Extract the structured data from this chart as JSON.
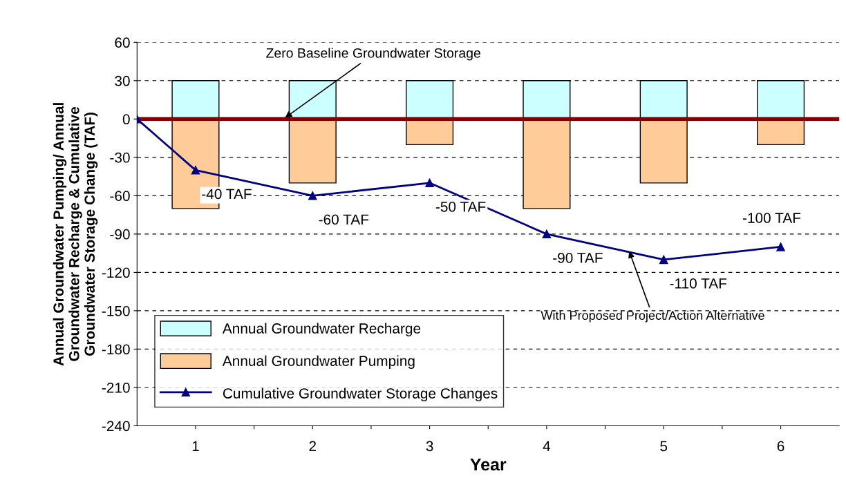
{
  "chart_data": {
    "type": "bar",
    "xlabel": "Year",
    "ylabel": "Annual Groundwater Pumping/ Annual\nGroundwater Recharge & Cumulative\nGroundwater Storage Change (TAF)",
    "x": [
      1,
      2,
      3,
      4,
      5,
      6
    ],
    "stacked": true,
    "series": [
      {
        "name": "Annual Groundwater Recharge",
        "color": "#ccffff",
        "values": [
          30,
          30,
          30,
          30,
          30,
          30
        ]
      },
      {
        "name": "Annual Groundwater Pumping",
        "color": "#ffcc99",
        "values": [
          -70,
          -50,
          -20,
          -70,
          -50,
          -20
        ]
      },
      {
        "name": "Cumulative Groundwater Storage Changes",
        "type": "line",
        "color": "#000080",
        "x": [
          0.5,
          1,
          2,
          3,
          4,
          5,
          6
        ],
        "values": [
          0,
          -40,
          -60,
          -50,
          -90,
          -110,
          -100
        ],
        "value_labels": [
          null,
          "-40 TAF",
          "-60 TAF",
          "-50 TAF",
          "-90 TAF",
          "-110 TAF",
          "-100 TAF"
        ]
      }
    ],
    "marker": "triangle",
    "line_style": "solid",
    "xlim": [
      0.5,
      6.5
    ],
    "xticks": [
      {
        "value": 1,
        "label": "1"
      },
      {
        "value": 1.5,
        "label": null
      },
      {
        "value": 2,
        "label": "2"
      },
      {
        "value": 2.5,
        "label": null
      },
      {
        "value": 3,
        "label": "3"
      },
      {
        "value": 3.5,
        "label": null
      },
      {
        "value": 4,
        "label": "4"
      },
      {
        "value": 4.5,
        "label": null
      },
      {
        "value": 5,
        "label": "5"
      },
      {
        "value": 5.5,
        "label": null
      },
      {
        "value": 6,
        "label": "6"
      }
    ],
    "ylim": [
      -240,
      60
    ],
    "yticks": [
      -240,
      -210,
      -180,
      -150,
      -120,
      -90,
      -60,
      -30,
      0,
      30,
      60
    ],
    "grid": "y",
    "legend": "bottom left",
    "ref_lines": [
      {
        "axis": "y",
        "value": 0,
        "label": "Zero Baseline Groundwater Storage",
        "color": "#800000",
        "line_style": "solid"
      }
    ],
    "annotations": [
      {
        "text": "With Proposed Project/Action Alternative",
        "x": 4.7,
        "y": -102
      }
    ]
  }
}
